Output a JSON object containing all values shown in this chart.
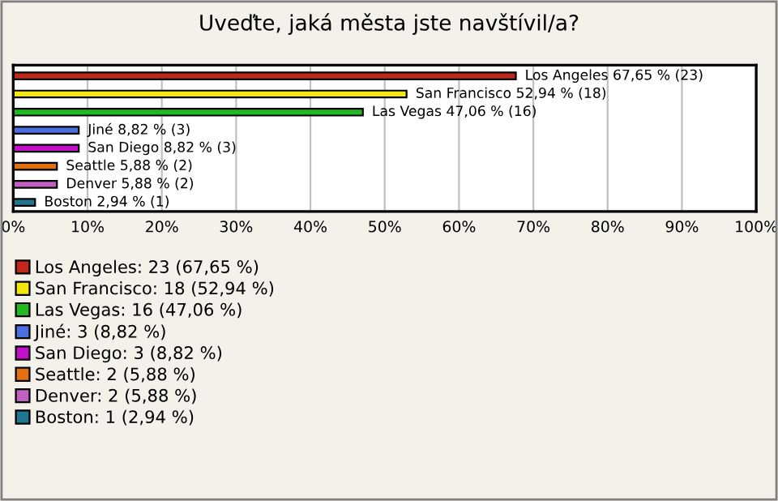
{
  "chart_data": {
    "type": "bar",
    "orientation": "horizontal",
    "title": "Uveďte, jaká města jste navštívil/a?",
    "categories": [
      null,
      null,
      null,
      null,
      null,
      null,
      null,
      null
    ],
    "series": [
      {
        "name": "Los Angeles: 23 (67,65 %)",
        "color": "#c0281c",
        "values": [
          67.65,
          null,
          null,
          null,
          null,
          null,
          null,
          null
        ],
        "value_labels": [
          "Los Angeles 67,65 % (23)",
          null,
          null,
          null,
          null,
          null,
          null,
          null
        ]
      },
      {
        "name": "San Francisco: 18 (52,94 %)",
        "color": "#f5e60a",
        "values": [
          null,
          52.94,
          null,
          null,
          null,
          null,
          null,
          null
        ],
        "value_labels": [
          null,
          "San Francisco 52,94 % (18)",
          null,
          null,
          null,
          null,
          null,
          null
        ]
      },
      {
        "name": "Las Vegas: 16 (47,06 %)",
        "color": "#22b822",
        "values": [
          null,
          null,
          47.06,
          null,
          null,
          null,
          null,
          null
        ],
        "value_labels": [
          null,
          null,
          "Las Vegas 47,06 % (16)",
          null,
          null,
          null,
          null,
          null
        ]
      },
      {
        "name": "Jiné: 3 (8,82 %)",
        "color": "#4a70e0",
        "values": [
          null,
          null,
          null,
          8.82,
          null,
          null,
          null,
          null
        ],
        "value_labels": [
          null,
          null,
          null,
          "Jiné 8,82 % (3)",
          null,
          null,
          null,
          null
        ]
      },
      {
        "name": "San Diego: 3 (8,82 %)",
        "color": "#c010c8",
        "values": [
          null,
          null,
          null,
          null,
          8.82,
          null,
          null,
          null
        ],
        "value_labels": [
          null,
          null,
          null,
          null,
          "San Diego 8,82 % (3)",
          null,
          null,
          null
        ]
      },
      {
        "name": "Seattle: 2 (5,88 %)",
        "color": "#e07010",
        "values": [
          null,
          null,
          null,
          null,
          null,
          5.88,
          null,
          null
        ],
        "value_labels": [
          null,
          null,
          null,
          null,
          null,
          "Seattle 5,88 % (2)",
          null,
          null
        ]
      },
      {
        "name": "Denver: 2 (5,88 %)",
        "color": "#c060c0",
        "values": [
          null,
          null,
          null,
          null,
          null,
          null,
          5.88,
          null
        ],
        "value_labels": [
          null,
          null,
          null,
          null,
          null,
          null,
          "Denver 5,88 % (2)",
          null
        ]
      },
      {
        "name": "Boston: 1 (2,94 %)",
        "color": "#207890",
        "values": [
          null,
          null,
          null,
          null,
          null,
          null,
          null,
          2.94
        ],
        "value_labels": [
          null,
          null,
          null,
          null,
          null,
          null,
          null,
          "Boston 2,94 % (1)"
        ]
      }
    ],
    "xlim": [
      0,
      100
    ],
    "xticks": [
      {
        "value": 0,
        "label": "0%"
      },
      {
        "value": 10,
        "label": "10%"
      },
      {
        "value": 20,
        "label": "20%"
      },
      {
        "value": 30,
        "label": "30%"
      },
      {
        "value": 40,
        "label": "40%"
      },
      {
        "value": 50,
        "label": "50%"
      },
      {
        "value": 60,
        "label": "60%"
      },
      {
        "value": 70,
        "label": "70%"
      },
      {
        "value": 80,
        "label": "80%"
      },
      {
        "value": 90,
        "label": "90%"
      },
      {
        "value": 100,
        "label": "100%"
      }
    ],
    "tick_labels": "x",
    "grid": "x",
    "legend": "bottom"
  }
}
